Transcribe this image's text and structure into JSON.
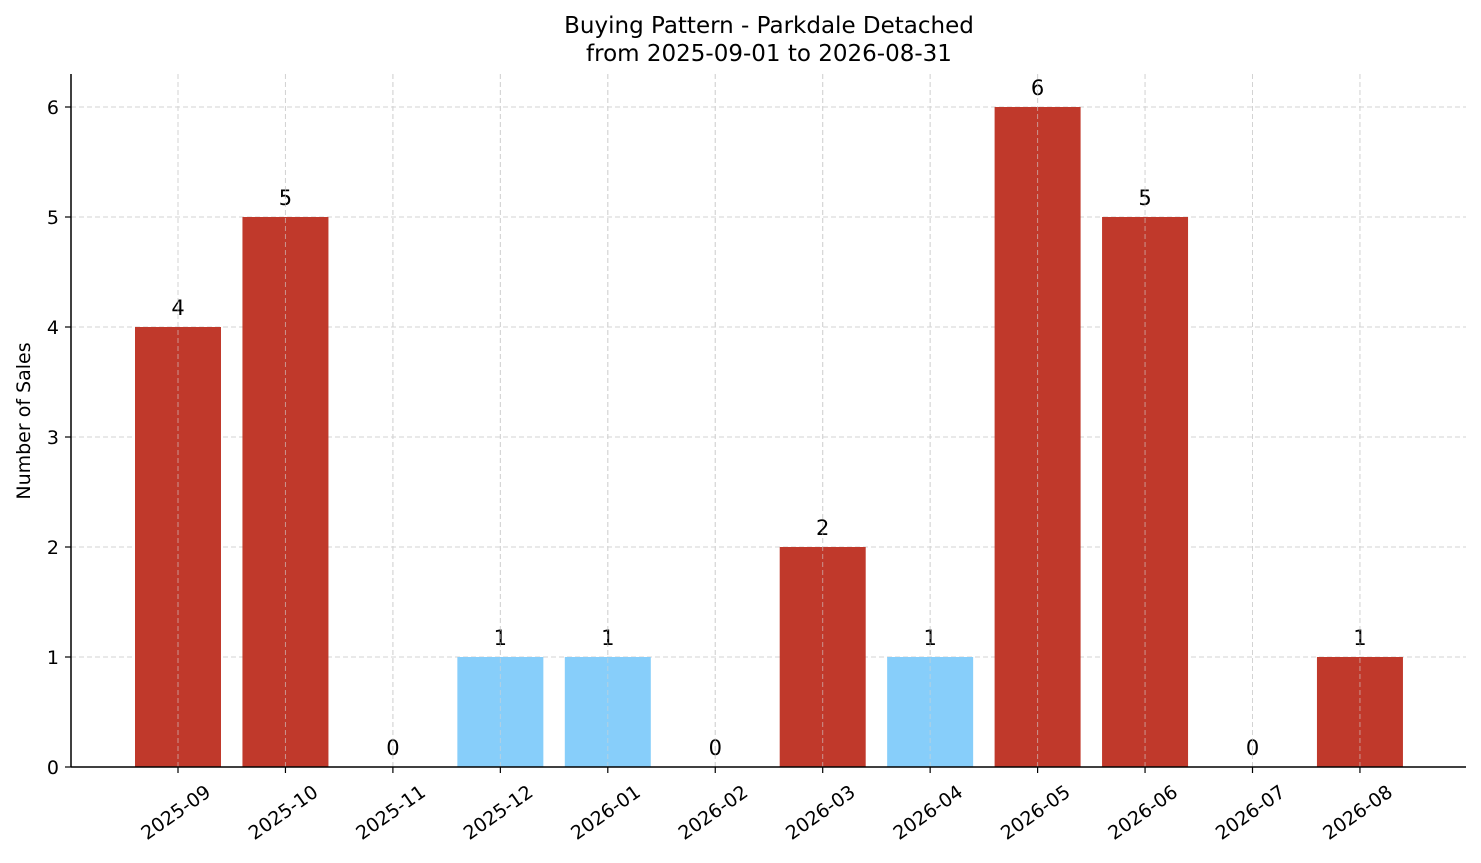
{
  "chart_data": {
    "type": "bar",
    "title": "Buying Pattern - Parkdale Detached",
    "subtitle": "from 2025-09-01 to 2026-08-31",
    "xlabel": "",
    "ylabel": "Number of Sales",
    "ylim": [
      0,
      6.3
    ],
    "yticks": [
      0,
      1,
      2,
      3,
      4,
      5,
      6
    ],
    "grid": true,
    "categories": [
      "2025-09",
      "2025-10",
      "2025-11",
      "2025-12",
      "2026-01",
      "2026-02",
      "2026-03",
      "2026-04",
      "2026-05",
      "2026-06",
      "2026-07",
      "2026-08"
    ],
    "values": [
      4,
      5,
      0,
      1,
      1,
      0,
      2,
      1,
      6,
      5,
      0,
      1
    ],
    "bar_colors": [
      "#c0392b",
      "#c0392b",
      "#c0392b",
      "#87cefa",
      "#87cefa",
      "#87cefa",
      "#c0392b",
      "#87cefa",
      "#c0392b",
      "#c0392b",
      "#c0392b",
      "#c0392b"
    ]
  }
}
